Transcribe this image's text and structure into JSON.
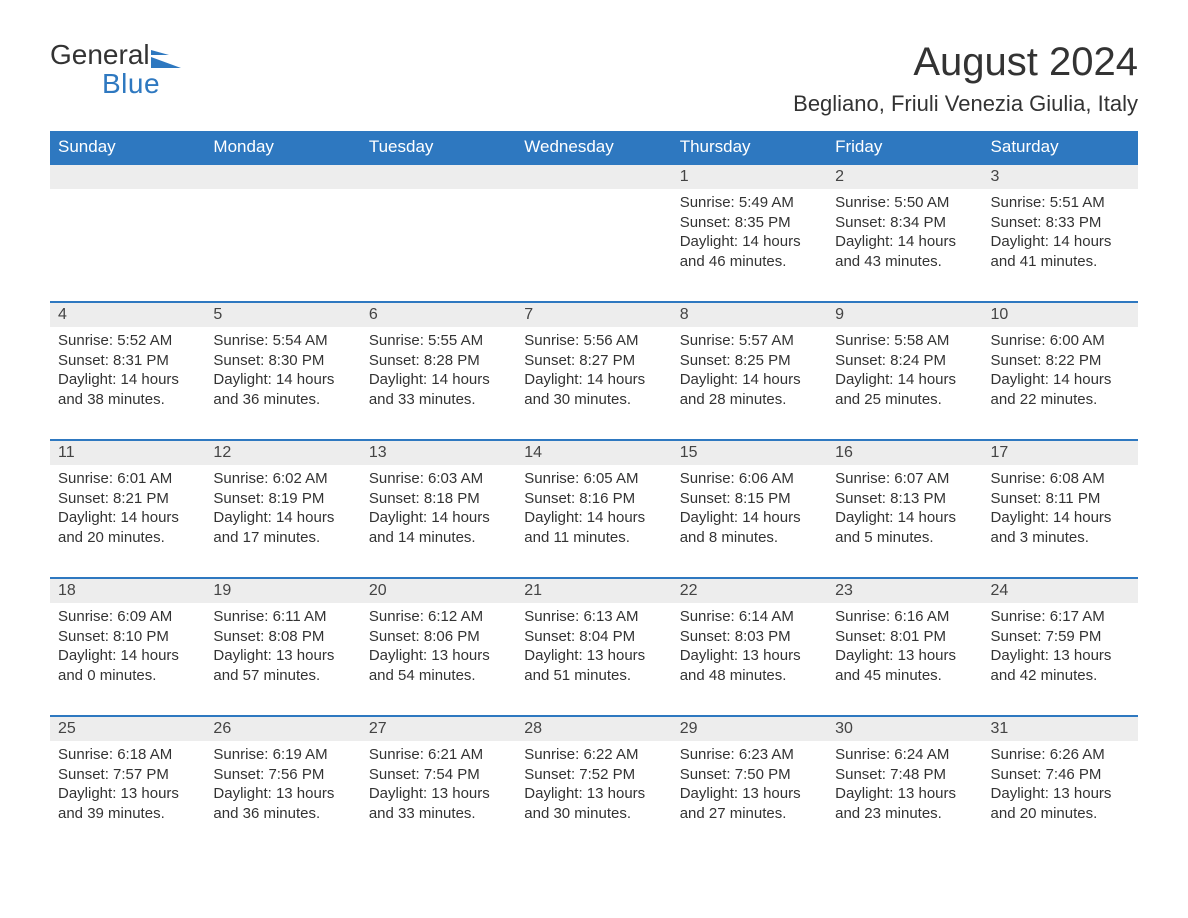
{
  "logo": {
    "text_general": "General",
    "text_blue": "Blue",
    "icon_color": "#2e78c0"
  },
  "header": {
    "month_title": "August 2024",
    "location": "Begliano, Friuli Venezia Giulia, Italy"
  },
  "colors": {
    "header_bg": "#2e78c0",
    "header_text": "#ffffff",
    "daynum_bg": "#ededed",
    "day_border_top": "#2e78c0",
    "body_text": "#333333",
    "page_bg": "#ffffff"
  },
  "typography": {
    "month_title_fontsize": 40,
    "location_fontsize": 22,
    "weekday_fontsize": 17,
    "daynum_fontsize": 16,
    "body_fontsize": 15,
    "font_family": "Arial"
  },
  "calendar": {
    "weekdays": [
      "Sunday",
      "Monday",
      "Tuesday",
      "Wednesday",
      "Thursday",
      "Friday",
      "Saturday"
    ],
    "weeks": [
      [
        null,
        null,
        null,
        null,
        {
          "day": "1",
          "sunrise": "Sunrise: 5:49 AM",
          "sunset": "Sunset: 8:35 PM",
          "daylight": "Daylight: 14 hours and 46 minutes."
        },
        {
          "day": "2",
          "sunrise": "Sunrise: 5:50 AM",
          "sunset": "Sunset: 8:34 PM",
          "daylight": "Daylight: 14 hours and 43 minutes."
        },
        {
          "day": "3",
          "sunrise": "Sunrise: 5:51 AM",
          "sunset": "Sunset: 8:33 PM",
          "daylight": "Daylight: 14 hours and 41 minutes."
        }
      ],
      [
        {
          "day": "4",
          "sunrise": "Sunrise: 5:52 AM",
          "sunset": "Sunset: 8:31 PM",
          "daylight": "Daylight: 14 hours and 38 minutes."
        },
        {
          "day": "5",
          "sunrise": "Sunrise: 5:54 AM",
          "sunset": "Sunset: 8:30 PM",
          "daylight": "Daylight: 14 hours and 36 minutes."
        },
        {
          "day": "6",
          "sunrise": "Sunrise: 5:55 AM",
          "sunset": "Sunset: 8:28 PM",
          "daylight": "Daylight: 14 hours and 33 minutes."
        },
        {
          "day": "7",
          "sunrise": "Sunrise: 5:56 AM",
          "sunset": "Sunset: 8:27 PM",
          "daylight": "Daylight: 14 hours and 30 minutes."
        },
        {
          "day": "8",
          "sunrise": "Sunrise: 5:57 AM",
          "sunset": "Sunset: 8:25 PM",
          "daylight": "Daylight: 14 hours and 28 minutes."
        },
        {
          "day": "9",
          "sunrise": "Sunrise: 5:58 AM",
          "sunset": "Sunset: 8:24 PM",
          "daylight": "Daylight: 14 hours and 25 minutes."
        },
        {
          "day": "10",
          "sunrise": "Sunrise: 6:00 AM",
          "sunset": "Sunset: 8:22 PM",
          "daylight": "Daylight: 14 hours and 22 minutes."
        }
      ],
      [
        {
          "day": "11",
          "sunrise": "Sunrise: 6:01 AM",
          "sunset": "Sunset: 8:21 PM",
          "daylight": "Daylight: 14 hours and 20 minutes."
        },
        {
          "day": "12",
          "sunrise": "Sunrise: 6:02 AM",
          "sunset": "Sunset: 8:19 PM",
          "daylight": "Daylight: 14 hours and 17 minutes."
        },
        {
          "day": "13",
          "sunrise": "Sunrise: 6:03 AM",
          "sunset": "Sunset: 8:18 PM",
          "daylight": "Daylight: 14 hours and 14 minutes."
        },
        {
          "day": "14",
          "sunrise": "Sunrise: 6:05 AM",
          "sunset": "Sunset: 8:16 PM",
          "daylight": "Daylight: 14 hours and 11 minutes."
        },
        {
          "day": "15",
          "sunrise": "Sunrise: 6:06 AM",
          "sunset": "Sunset: 8:15 PM",
          "daylight": "Daylight: 14 hours and 8 minutes."
        },
        {
          "day": "16",
          "sunrise": "Sunrise: 6:07 AM",
          "sunset": "Sunset: 8:13 PM",
          "daylight": "Daylight: 14 hours and 5 minutes."
        },
        {
          "day": "17",
          "sunrise": "Sunrise: 6:08 AM",
          "sunset": "Sunset: 8:11 PM",
          "daylight": "Daylight: 14 hours and 3 minutes."
        }
      ],
      [
        {
          "day": "18",
          "sunrise": "Sunrise: 6:09 AM",
          "sunset": "Sunset: 8:10 PM",
          "daylight": "Daylight: 14 hours and 0 minutes."
        },
        {
          "day": "19",
          "sunrise": "Sunrise: 6:11 AM",
          "sunset": "Sunset: 8:08 PM",
          "daylight": "Daylight: 13 hours and 57 minutes."
        },
        {
          "day": "20",
          "sunrise": "Sunrise: 6:12 AM",
          "sunset": "Sunset: 8:06 PM",
          "daylight": "Daylight: 13 hours and 54 minutes."
        },
        {
          "day": "21",
          "sunrise": "Sunrise: 6:13 AM",
          "sunset": "Sunset: 8:04 PM",
          "daylight": "Daylight: 13 hours and 51 minutes."
        },
        {
          "day": "22",
          "sunrise": "Sunrise: 6:14 AM",
          "sunset": "Sunset: 8:03 PM",
          "daylight": "Daylight: 13 hours and 48 minutes."
        },
        {
          "day": "23",
          "sunrise": "Sunrise: 6:16 AM",
          "sunset": "Sunset: 8:01 PM",
          "daylight": "Daylight: 13 hours and 45 minutes."
        },
        {
          "day": "24",
          "sunrise": "Sunrise: 6:17 AM",
          "sunset": "Sunset: 7:59 PM",
          "daylight": "Daylight: 13 hours and 42 minutes."
        }
      ],
      [
        {
          "day": "25",
          "sunrise": "Sunrise: 6:18 AM",
          "sunset": "Sunset: 7:57 PM",
          "daylight": "Daylight: 13 hours and 39 minutes."
        },
        {
          "day": "26",
          "sunrise": "Sunrise: 6:19 AM",
          "sunset": "Sunset: 7:56 PM",
          "daylight": "Daylight: 13 hours and 36 minutes."
        },
        {
          "day": "27",
          "sunrise": "Sunrise: 6:21 AM",
          "sunset": "Sunset: 7:54 PM",
          "daylight": "Daylight: 13 hours and 33 minutes."
        },
        {
          "day": "28",
          "sunrise": "Sunrise: 6:22 AM",
          "sunset": "Sunset: 7:52 PM",
          "daylight": "Daylight: 13 hours and 30 minutes."
        },
        {
          "day": "29",
          "sunrise": "Sunrise: 6:23 AM",
          "sunset": "Sunset: 7:50 PM",
          "daylight": "Daylight: 13 hours and 27 minutes."
        },
        {
          "day": "30",
          "sunrise": "Sunrise: 6:24 AM",
          "sunset": "Sunset: 7:48 PM",
          "daylight": "Daylight: 13 hours and 23 minutes."
        },
        {
          "day": "31",
          "sunrise": "Sunrise: 6:26 AM",
          "sunset": "Sunset: 7:46 PM",
          "daylight": "Daylight: 13 hours and 20 minutes."
        }
      ]
    ]
  }
}
